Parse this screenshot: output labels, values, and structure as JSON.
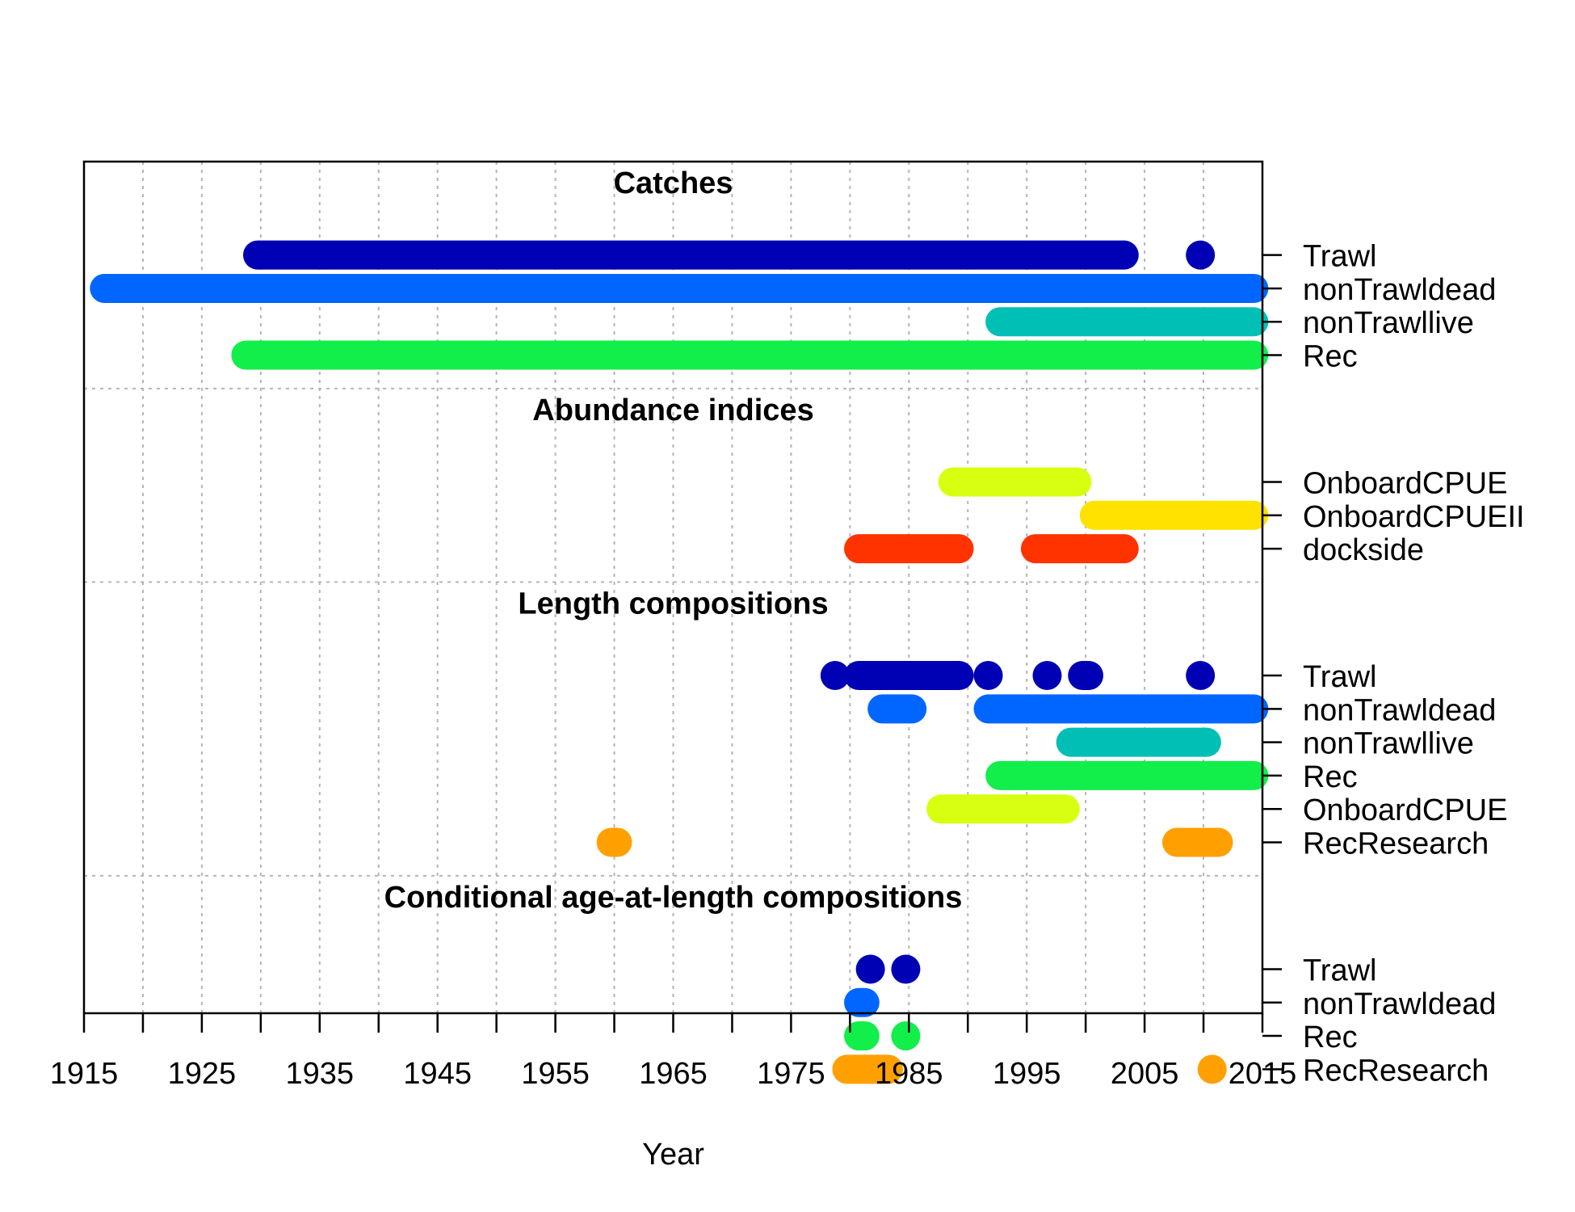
{
  "chart_data": {
    "type": "timeline",
    "xlabel": "Year",
    "xlim": [
      1915,
      2015
    ],
    "x_ticks": [
      1915,
      1925,
      1935,
      1945,
      1955,
      1965,
      1975,
      1985,
      1995,
      2005,
      2015
    ],
    "grid": true,
    "colors": {
      "Trawl": "#0000B4",
      "nonTrawldead": "#0066FF",
      "nonTrawllive": "#00BFB4",
      "Rec": "#12EE4A",
      "OnboardCPUE": "#D9FF10",
      "OnboardCPUEII": "#FFE200",
      "dockside": "#FF3300",
      "RecResearch": "#FFA000"
    },
    "sections": [
      {
        "title": "Catches",
        "rows": [
          {
            "label": "Trawl",
            "color": "#0000B4",
            "years": [
              [
                1929,
                2004
              ],
              [
                2009,
                2009
              ]
            ]
          },
          {
            "label": "nonTrawldead",
            "color": "#0066FF",
            "years": [
              [
                1916,
                2015
              ]
            ]
          },
          {
            "label": "nonTrawllive",
            "color": "#00BFB4",
            "years": [
              [
                1992,
                2015
              ]
            ]
          },
          {
            "label": "Rec",
            "color": "#12EE4A",
            "years": [
              [
                1928,
                2015
              ]
            ]
          }
        ]
      },
      {
        "title": "Abundance indices",
        "rows": [
          {
            "label": "OnboardCPUE",
            "color": "#D9FF10",
            "years": [
              [
                1988,
                2000
              ]
            ]
          },
          {
            "label": "OnboardCPUEII",
            "color": "#FFE200",
            "years": [
              [
                2000,
                2015
              ]
            ]
          },
          {
            "label": "dockside",
            "color": "#FF3300",
            "years": [
              [
                1980,
                1990
              ],
              [
                1995,
                2004
              ]
            ]
          }
        ]
      },
      {
        "title": "Length compositions",
        "rows": [
          {
            "label": "Trawl",
            "color": "#0000B4",
            "years": [
              [
                1978,
                1978
              ],
              [
                1980,
                1990
              ],
              [
                1991,
                1992
              ],
              [
                1996,
                1997
              ],
              [
                1999,
                2001
              ],
              [
                2009,
                2009
              ]
            ]
          },
          {
            "label": "nonTrawldead",
            "color": "#0066FF",
            "years": [
              [
                1982,
                1986
              ],
              [
                1991,
                2015
              ]
            ]
          },
          {
            "label": "nonTrawllive",
            "color": "#00BFB4",
            "years": [
              [
                1998,
                2011
              ]
            ]
          },
          {
            "label": "Rec",
            "color": "#12EE4A",
            "years": [
              [
                1992,
                2015
              ]
            ]
          },
          {
            "label": "OnboardCPUE",
            "color": "#D9FF10",
            "years": [
              [
                1987,
                1999
              ]
            ]
          },
          {
            "label": "RecResearch",
            "color": "#FFA000",
            "years": [
              [
                1959,
                1961
              ],
              [
                2007,
                2012
              ]
            ]
          }
        ]
      },
      {
        "title": "Conditional age-at-length compositions",
        "rows": [
          {
            "label": "Trawl",
            "color": "#0000B4",
            "years": [
              [
                1981,
                1982
              ],
              [
                1984,
                1984
              ]
            ]
          },
          {
            "label": "nonTrawldead",
            "color": "#0066FF",
            "years": [
              [
                1980,
                1982
              ]
            ]
          },
          {
            "label": "Rec",
            "color": "#12EE4A",
            "years": [
              [
                1980,
                1982
              ],
              [
                1984,
                1984
              ]
            ]
          },
          {
            "label": "RecResearch",
            "color": "#FFA000",
            "years": [
              [
                1979,
                1984
              ],
              [
                2010,
                2011
              ]
            ]
          }
        ]
      }
    ]
  }
}
